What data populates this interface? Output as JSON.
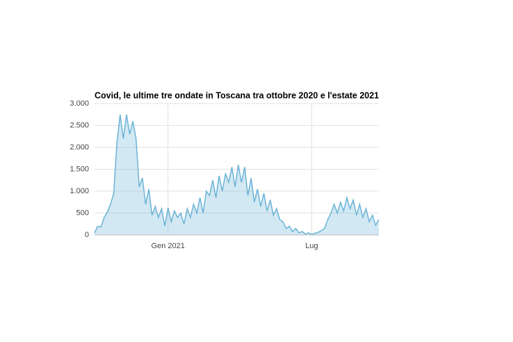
{
  "chart_data": {
    "type": "area",
    "title": "Covid, le ultime tre ondate in Toscana tra ottobre 2020 e l'estate 2021",
    "categories": [
      null,
      null,
      null,
      null,
      null,
      null,
      null,
      null,
      null,
      null,
      null,
      null,
      null,
      null,
      null,
      null,
      null,
      null,
      null,
      null,
      null,
      null,
      null,
      "Gen 2021",
      null,
      null,
      null,
      null,
      null,
      null,
      null,
      null,
      null,
      null,
      null,
      null,
      null,
      null,
      null,
      null,
      null,
      null,
      null,
      null,
      null,
      null,
      null,
      null,
      null,
      null,
      null,
      null,
      null,
      null,
      null,
      null,
      null,
      null,
      null,
      null,
      null,
      null,
      null,
      null,
      null,
      null,
      null,
      null,
      "Lug",
      null,
      null,
      null,
      null,
      null,
      null,
      null,
      null,
      null,
      null,
      null,
      null,
      null,
      null,
      null,
      null,
      null,
      null,
      null,
      null,
      null
    ],
    "values": [
      50,
      200,
      180,
      400,
      520,
      700,
      950,
      2100,
      2750,
      2200,
      2750,
      2300,
      2600,
      2200,
      1100,
      1300,
      700,
      1050,
      450,
      650,
      400,
      600,
      200,
      620,
      300,
      550,
      400,
      500,
      250,
      600,
      400,
      700,
      500,
      850,
      500,
      1000,
      900,
      1250,
      850,
      1350,
      1000,
      1400,
      1200,
      1550,
      1100,
      1600,
      1200,
      1550,
      900,
      1300,
      750,
      1050,
      650,
      950,
      550,
      800,
      450,
      600,
      350,
      300,
      150,
      200,
      80,
      150,
      50,
      80,
      20,
      50,
      10,
      40,
      60,
      100,
      150,
      350,
      500,
      700,
      500,
      750,
      550,
      850,
      600,
      800,
      450,
      700,
      400,
      600,
      300,
      450,
      220,
      350
    ],
    "color": "#6bb3d6",
    "ylim": [
      0,
      3000
    ],
    "yticks": [
      0,
      500,
      {
        "value": 1000,
        "label": "1.000"
      },
      {
        "value": 1500,
        "label": "1.500"
      },
      {
        "value": 2000,
        "label": "2.000"
      },
      {
        "value": 2500,
        "label": "2.500"
      },
      {
        "value": 3000,
        "label": "3.000"
      }
    ],
    "grid": true
  }
}
